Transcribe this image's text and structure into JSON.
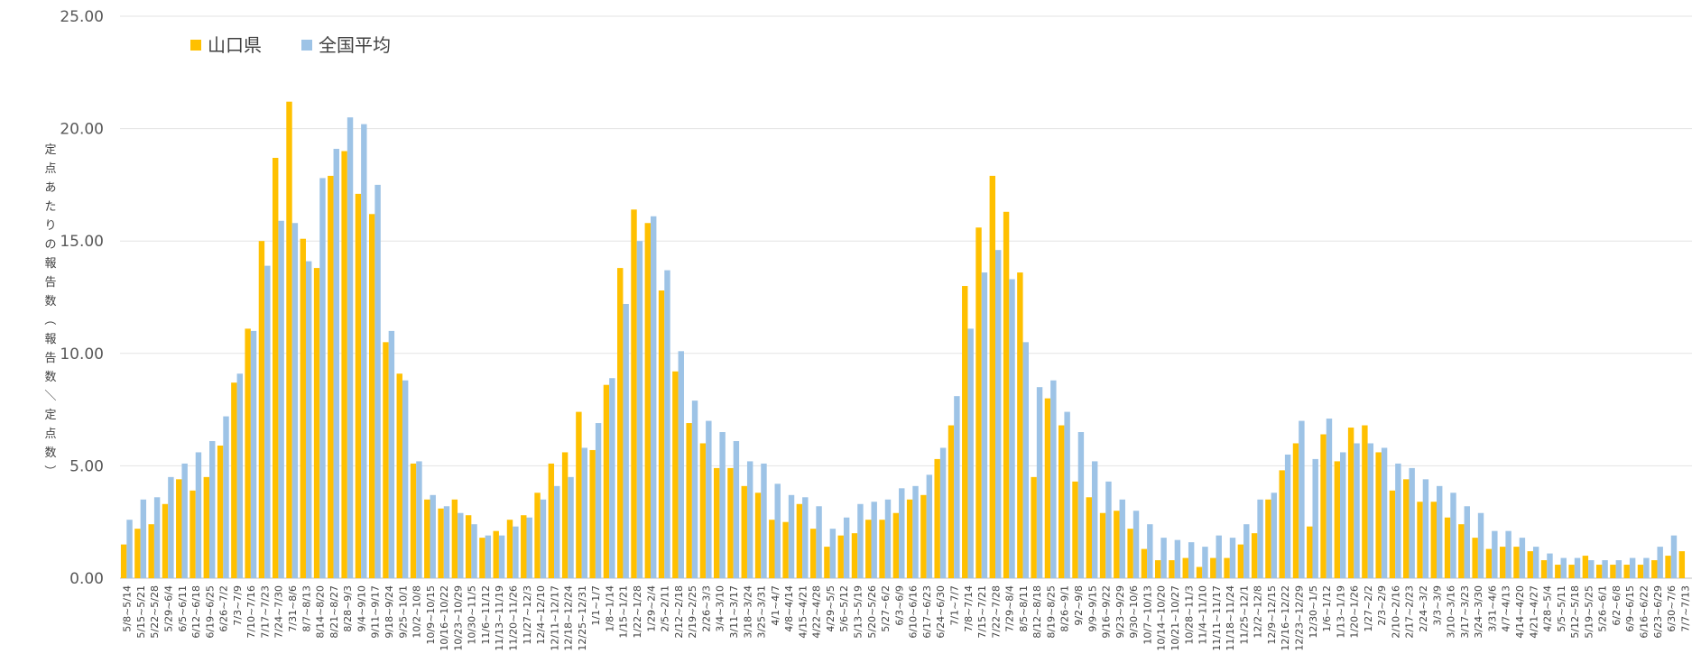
{
  "chart_data": {
    "type": "bar",
    "title": "",
    "xlabel": "",
    "ylabel": "定点あたりの報告数（報告数／定点数）",
    "ylim": [
      0,
      25
    ],
    "yticks": [
      "0.00",
      "5.00",
      "10.00",
      "15.00",
      "20.00",
      "25.00"
    ],
    "grid": true,
    "legend": "top-left",
    "categories": [
      "5/8~5/14",
      "5/15~5/21",
      "5/22~5/28",
      "5/29~6/4",
      "6/5~6/11",
      "6/12~6/18",
      "6/19~6/25",
      "6/26~7/2",
      "7/3~7/9",
      "7/10~7/16",
      "7/17~7/23",
      "7/24~7/30",
      "7/31~8/6",
      "8/7~8/13",
      "8/14~8/20",
      "8/21~8/27",
      "8/28~9/3",
      "9/4~9/10",
      "9/11~9/17",
      "9/18~9/24",
      "9/25~10/1",
      "10/2~10/8",
      "10/9~10/15",
      "10/16~10/22",
      "10/23~10/29",
      "10/30~11/5",
      "11/6~11/12",
      "11/13~11/19",
      "11/20~11/26",
      "11/27~12/3",
      "12/4~12/10",
      "12/11~12/17",
      "12/18~12/24",
      "12/25~12/31",
      "1/1~1/7",
      "1/8~1/14",
      "1/15~1/21",
      "1/22~1/28",
      "1/29~2/4",
      "2/5~2/11",
      "2/12~2/18",
      "2/19~2/25",
      "2/26~3/3",
      "3/4~3/10",
      "3/11~3/17",
      "3/18~3/24",
      "3/25~3/31",
      "4/1~4/7",
      "4/8~4/14",
      "4/15~4/21",
      "4/22~4/28",
      "4/29~5/5",
      "5/6~5/12",
      "5/13~5/19",
      "5/20~5/26",
      "5/27~6/2",
      "6/3~6/9",
      "6/10~6/16",
      "6/17~6/23",
      "6/24~6/30",
      "7/1~7/7",
      "7/8~7/14",
      "7/15~7/21",
      "7/22~7/28",
      "7/29~8/4",
      "8/5~8/11",
      "8/12~8/18",
      "8/19~8/25",
      "8/26~9/1",
      "9/2~9/8",
      "9/9~9/15",
      "9/16~9/22",
      "9/23~9/29",
      "9/30~10/6",
      "10/7~10/13",
      "10/14~10/20",
      "10/21~10/27",
      "10/28~11/3",
      "11/4~11/10",
      "11/11~11/17",
      "11/18~11/24",
      "11/25~12/1",
      "12/2~12/8",
      "12/9~12/15",
      "12/16~12/22",
      "12/23~12/29",
      "12/30~1/5",
      "1/6~1/12",
      "1/13~1/19",
      "1/20~1/26",
      "1/27~2/2",
      "2/3~2/9",
      "2/10~2/16",
      "2/17~2/23",
      "2/24~3/2",
      "3/3~3/9",
      "3/10~3/16",
      "3/17~3/23",
      "3/24~3/30",
      "3/31~4/6",
      "4/7~4/13",
      "4/14~4/20",
      "4/21~4/27",
      "4/28~5/4",
      "5/5~5/11",
      "5/12~5/18",
      "5/19~5/25",
      "5/26~6/1",
      "6/2~6/8",
      "6/9~6/15",
      "6/16~6/22",
      "6/23~6/29",
      "6/30~7/6",
      "7/7~7/13"
    ],
    "series": [
      {
        "name": "山口県",
        "color": "#FFC000",
        "values": [
          1.5,
          2.2,
          2.4,
          3.3,
          4.4,
          3.9,
          4.5,
          5.9,
          8.7,
          11.1,
          15.0,
          18.7,
          21.2,
          15.1,
          13.8,
          17.9,
          19.0,
          17.1,
          16.2,
          10.5,
          9.1,
          5.1,
          3.5,
          3.1,
          3.5,
          2.8,
          1.8,
          2.1,
          2.6,
          2.8,
          3.8,
          5.1,
          5.6,
          7.4,
          5.7,
          8.6,
          13.8,
          16.4,
          15.8,
          12.8,
          9.2,
          6.9,
          6.0,
          4.9,
          4.9,
          4.1,
          3.8,
          2.6,
          2.5,
          3.3,
          2.2,
          1.4,
          1.9,
          2.0,
          2.6,
          2.6,
          2.9,
          3.5,
          3.7,
          5.3,
          6.8,
          13.0,
          15.6,
          17.9,
          16.3,
          13.6,
          4.5,
          8.0,
          6.8,
          4.3,
          3.6,
          2.9,
          3.0,
          2.2,
          1.3,
          0.8,
          0.8,
          0.9,
          0.5,
          0.9,
          0.9,
          1.5,
          2.0,
          3.5,
          4.8,
          6.0,
          2.3,
          6.4,
          5.2,
          6.7,
          6.8,
          5.6,
          3.9,
          4.4,
          3.4,
          3.4,
          2.7,
          2.4,
          1.8,
          1.3,
          1.4,
          1.4,
          1.2,
          0.8,
          0.6,
          0.6,
          1.0,
          0.6,
          0.6,
          0.6,
          0.6,
          0.8,
          1.0,
          1.2
        ]
      },
      {
        "name": "全国平均",
        "color": "#9DC3E6",
        "values": [
          2.6,
          3.5,
          3.6,
          4.5,
          5.1,
          5.6,
          6.1,
          7.2,
          9.1,
          11.0,
          13.9,
          15.9,
          15.8,
          14.1,
          17.8,
          19.1,
          20.5,
          20.2,
          17.5,
          11.0,
          8.8,
          5.2,
          3.7,
          3.2,
          2.9,
          2.4,
          1.9,
          1.9,
          2.3,
          2.7,
          3.5,
          4.1,
          4.5,
          5.8,
          6.9,
          8.9,
          12.2,
          15.0,
          16.1,
          13.7,
          10.1,
          7.9,
          7.0,
          6.5,
          6.1,
          5.2,
          5.1,
          4.2,
          3.7,
          3.6,
          3.2,
          2.2,
          2.7,
          3.3,
          3.4,
          3.5,
          4.0,
          4.1,
          4.6,
          5.8,
          8.1,
          11.1,
          13.6,
          14.6,
          13.3,
          10.5,
          8.5,
          8.8,
          7.4,
          6.5,
          5.2,
          4.3,
          3.5,
          3.0,
          2.4,
          1.8,
          1.7,
          1.6,
          1.4,
          1.9,
          1.8,
          2.4,
          3.5,
          3.8,
          5.5,
          7.0,
          5.3,
          7.1,
          5.6,
          6.0,
          6.0,
          5.8,
          5.1,
          4.9,
          4.4,
          4.1,
          3.8,
          3.2,
          2.9,
          2.1,
          2.1,
          1.8,
          1.4,
          1.1,
          0.9,
          0.9,
          0.8,
          0.8,
          0.8,
          0.9,
          0.9,
          1.4,
          1.9,
          0
        ]
      }
    ]
  }
}
